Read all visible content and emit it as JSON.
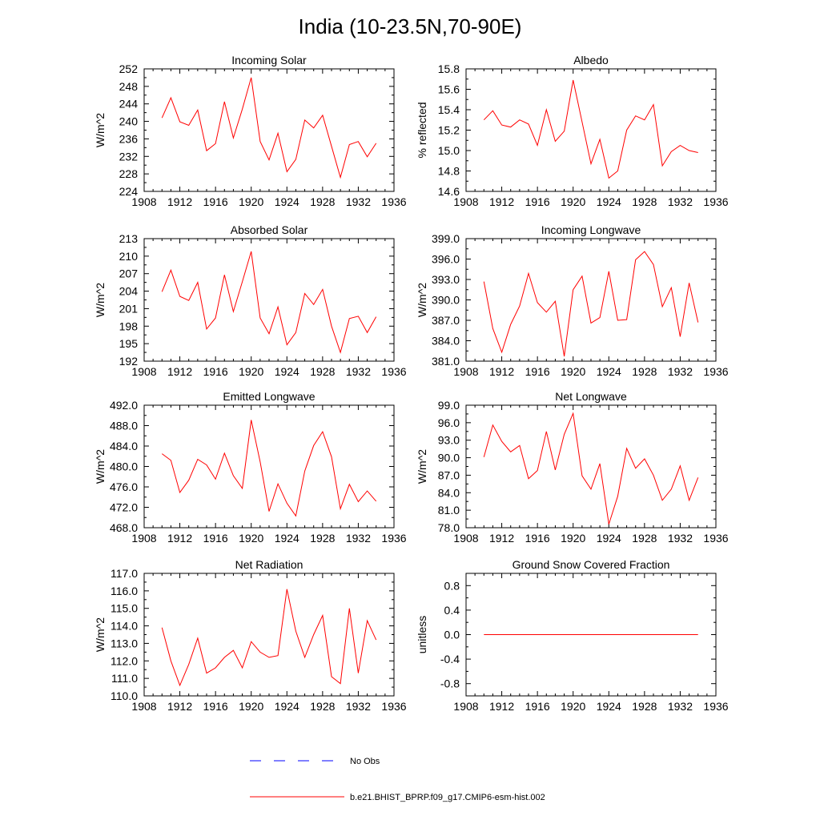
{
  "figure_title": "India (10-23.5N,70-90E)",
  "legend": {
    "entries": [
      {
        "label": "No Obs",
        "color": "#0000ff",
        "style": "dashed"
      },
      {
        "label": "b.e21.BHIST_BPRP.f09_g17.CMIP6-esm-hist.002",
        "color": "#ff0000",
        "style": "solid"
      }
    ]
  },
  "series_color": "#ff0000",
  "chart_data": [
    {
      "type": "line",
      "title": "Incoming Solar",
      "ylabel": "W/m^2",
      "xlim": [
        1908,
        1936
      ],
      "xticks": [
        1908,
        1912,
        1916,
        1920,
        1924,
        1928,
        1932,
        1936
      ],
      "ylim": [
        224,
        252
      ],
      "yticks": [
        224,
        228,
        232,
        236,
        240,
        244,
        248,
        252
      ],
      "ytick_labels": [
        "224",
        "228",
        "232",
        "236",
        "240",
        "244",
        "248",
        "252"
      ],
      "x": [
        1910,
        1911,
        1912,
        1913,
        1914,
        1915,
        1916,
        1917,
        1918,
        1919,
        1920,
        1921,
        1922,
        1923,
        1924,
        1925,
        1926,
        1927,
        1928,
        1929,
        1930,
        1931,
        1932,
        1933,
        1934
      ],
      "values": [
        240.8,
        245.4,
        239.9,
        239.1,
        242.6,
        233.3,
        234.9,
        244.5,
        236.2,
        242.8,
        250.0,
        235.4,
        231.2,
        237.3,
        228.5,
        231.3,
        240.3,
        238.5,
        241.4,
        234.3,
        227.2,
        234.7,
        235.4,
        231.9,
        235.0
      ]
    },
    {
      "type": "line",
      "title": "Albedo",
      "ylabel": "% reflected",
      "xlim": [
        1908,
        1936
      ],
      "xticks": [
        1908,
        1912,
        1916,
        1920,
        1924,
        1928,
        1932,
        1936
      ],
      "ylim": [
        14.6,
        15.8
      ],
      "yticks": [
        14.6,
        14.8,
        15.0,
        15.2,
        15.4,
        15.6,
        15.8
      ],
      "ytick_labels": [
        "14.6",
        "14.8",
        "15.0",
        "15.2",
        "15.4",
        "15.6",
        "15.8"
      ],
      "x": [
        1910,
        1911,
        1912,
        1913,
        1914,
        1915,
        1916,
        1917,
        1918,
        1919,
        1920,
        1921,
        1922,
        1923,
        1924,
        1925,
        1926,
        1927,
        1928,
        1929,
        1930,
        1931,
        1932,
        1933,
        1934
      ],
      "values": [
        15.3,
        15.39,
        15.25,
        15.23,
        15.3,
        15.26,
        15.05,
        15.4,
        15.09,
        15.19,
        15.69,
        15.28,
        14.87,
        15.11,
        14.73,
        14.8,
        15.2,
        15.34,
        15.3,
        15.45,
        14.85,
        14.99,
        15.05,
        15.0,
        14.98
      ]
    },
    {
      "type": "line",
      "title": "Absorbed Solar",
      "ylabel": "W/m^2",
      "xlim": [
        1908,
        1936
      ],
      "xticks": [
        1908,
        1912,
        1916,
        1920,
        1924,
        1928,
        1932,
        1936
      ],
      "ylim": [
        192,
        213
      ],
      "yticks": [
        192,
        195,
        198,
        201,
        204,
        207,
        210,
        213
      ],
      "ytick_labels": [
        "192",
        "195",
        "198",
        "201",
        "204",
        "207",
        "210",
        "213"
      ],
      "x": [
        1910,
        1911,
        1912,
        1913,
        1914,
        1915,
        1916,
        1917,
        1918,
        1919,
        1920,
        1921,
        1922,
        1923,
        1924,
        1925,
        1926,
        1927,
        1928,
        1929,
        1930,
        1931,
        1932,
        1933,
        1934
      ],
      "values": [
        203.9,
        207.6,
        203.1,
        202.4,
        205.5,
        197.5,
        199.4,
        206.8,
        200.5,
        205.6,
        210.8,
        199.4,
        196.7,
        201.3,
        194.8,
        196.9,
        203.6,
        201.7,
        204.3,
        198.0,
        193.5,
        199.3,
        199.7,
        196.9,
        199.6
      ]
    },
    {
      "type": "line",
      "title": "Incoming Longwave",
      "ylabel": "W/m^2",
      "xlim": [
        1908,
        1936
      ],
      "xticks": [
        1908,
        1912,
        1916,
        1920,
        1924,
        1928,
        1932,
        1936
      ],
      "ylim": [
        381.0,
        399.0
      ],
      "yticks": [
        381.0,
        384.0,
        387.0,
        390.0,
        393.0,
        396.0,
        399.0
      ],
      "ytick_labels": [
        "381.0",
        "384.0",
        "387.0",
        "390.0",
        "393.0",
        "396.0",
        "399.0"
      ],
      "x": [
        1910,
        1911,
        1912,
        1913,
        1914,
        1915,
        1916,
        1917,
        1918,
        1919,
        1920,
        1921,
        1922,
        1923,
        1924,
        1925,
        1926,
        1927,
        1928,
        1929,
        1930,
        1931,
        1932,
        1933,
        1934
      ],
      "values": [
        392.7,
        385.8,
        382.3,
        386.4,
        389.1,
        393.9,
        389.6,
        388.2,
        389.8,
        381.7,
        391.5,
        393.5,
        386.6,
        387.4,
        394.2,
        387.0,
        387.1,
        395.9,
        397.1,
        395.2,
        389.0,
        391.8,
        384.6,
        392.5,
        386.7
      ]
    },
    {
      "type": "line",
      "title": "Emitted Longwave",
      "ylabel": "W/m^2",
      "xlim": [
        1908,
        1936
      ],
      "xticks": [
        1908,
        1912,
        1916,
        1920,
        1924,
        1928,
        1932,
        1936
      ],
      "ylim": [
        468.0,
        492.0
      ],
      "yticks": [
        468.0,
        472.0,
        476.0,
        480.0,
        484.0,
        488.0,
        492.0
      ],
      "ytick_labels": [
        "468.0",
        "472.0",
        "476.0",
        "480.0",
        "484.0",
        "488.0",
        "492.0"
      ],
      "x": [
        1910,
        1911,
        1912,
        1913,
        1914,
        1915,
        1916,
        1917,
        1918,
        1919,
        1920,
        1921,
        1922,
        1923,
        1924,
        1925,
        1926,
        1927,
        1928,
        1929,
        1930,
        1931,
        1932,
        1933,
        1934
      ],
      "values": [
        482.5,
        481.2,
        474.9,
        477.3,
        481.4,
        480.3,
        477.5,
        482.6,
        478.2,
        475.7,
        489.1,
        480.9,
        471.2,
        476.6,
        472.8,
        470.3,
        479.1,
        484.1,
        486.8,
        481.9,
        471.7,
        476.5,
        473.1,
        475.2,
        473.2
      ]
    },
    {
      "type": "line",
      "title": "Net Longwave",
      "ylabel": "W/m^2",
      "xlim": [
        1908,
        1936
      ],
      "xticks": [
        1908,
        1912,
        1916,
        1920,
        1924,
        1928,
        1932,
        1936
      ],
      "ylim": [
        78.0,
        99.0
      ],
      "yticks": [
        78.0,
        81.0,
        84.0,
        87.0,
        90.0,
        93.0,
        96.0,
        99.0
      ],
      "ytick_labels": [
        "78.0",
        "81.0",
        "84.0",
        "87.0",
        "90.0",
        "93.0",
        "96.0",
        "99.0"
      ],
      "x": [
        1910,
        1911,
        1912,
        1913,
        1914,
        1915,
        1916,
        1917,
        1918,
        1919,
        1920,
        1921,
        1922,
        1923,
        1924,
        1925,
        1926,
        1927,
        1928,
        1929,
        1930,
        1931,
        1932,
        1933,
        1934
      ],
      "values": [
        90.1,
        95.6,
        92.8,
        91.0,
        92.1,
        86.4,
        87.8,
        94.5,
        87.9,
        94.0,
        97.6,
        86.9,
        84.6,
        89.0,
        78.6,
        83.4,
        91.6,
        88.2,
        89.8,
        87.0,
        82.7,
        84.6,
        88.6,
        82.7,
        86.6
      ]
    },
    {
      "type": "line",
      "title": "Net Radiation",
      "ylabel": "W/m^2",
      "xlim": [
        1908,
        1936
      ],
      "xticks": [
        1908,
        1912,
        1916,
        1920,
        1924,
        1928,
        1932,
        1936
      ],
      "ylim": [
        110.0,
        117.0
      ],
      "yticks": [
        110.0,
        111.0,
        112.0,
        113.0,
        114.0,
        115.0,
        116.0,
        117.0
      ],
      "ytick_labels": [
        "110.0",
        "111.0",
        "112.0",
        "113.0",
        "114.0",
        "115.0",
        "116.0",
        "117.0"
      ],
      "x": [
        1910,
        1911,
        1912,
        1913,
        1914,
        1915,
        1916,
        1917,
        1918,
        1919,
        1920,
        1921,
        1922,
        1923,
        1924,
        1925,
        1926,
        1927,
        1928,
        1929,
        1930,
        1931,
        1932,
        1933,
        1934
      ],
      "values": [
        113.9,
        112.0,
        110.6,
        111.8,
        113.3,
        111.3,
        111.6,
        112.2,
        112.6,
        111.6,
        113.1,
        112.5,
        112.2,
        112.3,
        116.1,
        113.7,
        112.2,
        113.5,
        114.6,
        111.1,
        110.7,
        115.0,
        111.3,
        114.3,
        113.2
      ]
    },
    {
      "type": "line",
      "title": "Ground Snow Covered Fraction",
      "ylabel": "unitless",
      "xlim": [
        1908,
        1936
      ],
      "xticks": [
        1908,
        1912,
        1916,
        1920,
        1924,
        1928,
        1932,
        1936
      ],
      "ylim": [
        -1.0,
        1.0
      ],
      "yticks": [
        -0.8,
        -0.4,
        0.0,
        0.4,
        0.8
      ],
      "ytick_labels": [
        "-0.8",
        "-0.4",
        "0.0",
        "0.4",
        "0.8"
      ],
      "x": [
        1910,
        1934
      ],
      "values": [
        0.0,
        0.0
      ]
    }
  ]
}
